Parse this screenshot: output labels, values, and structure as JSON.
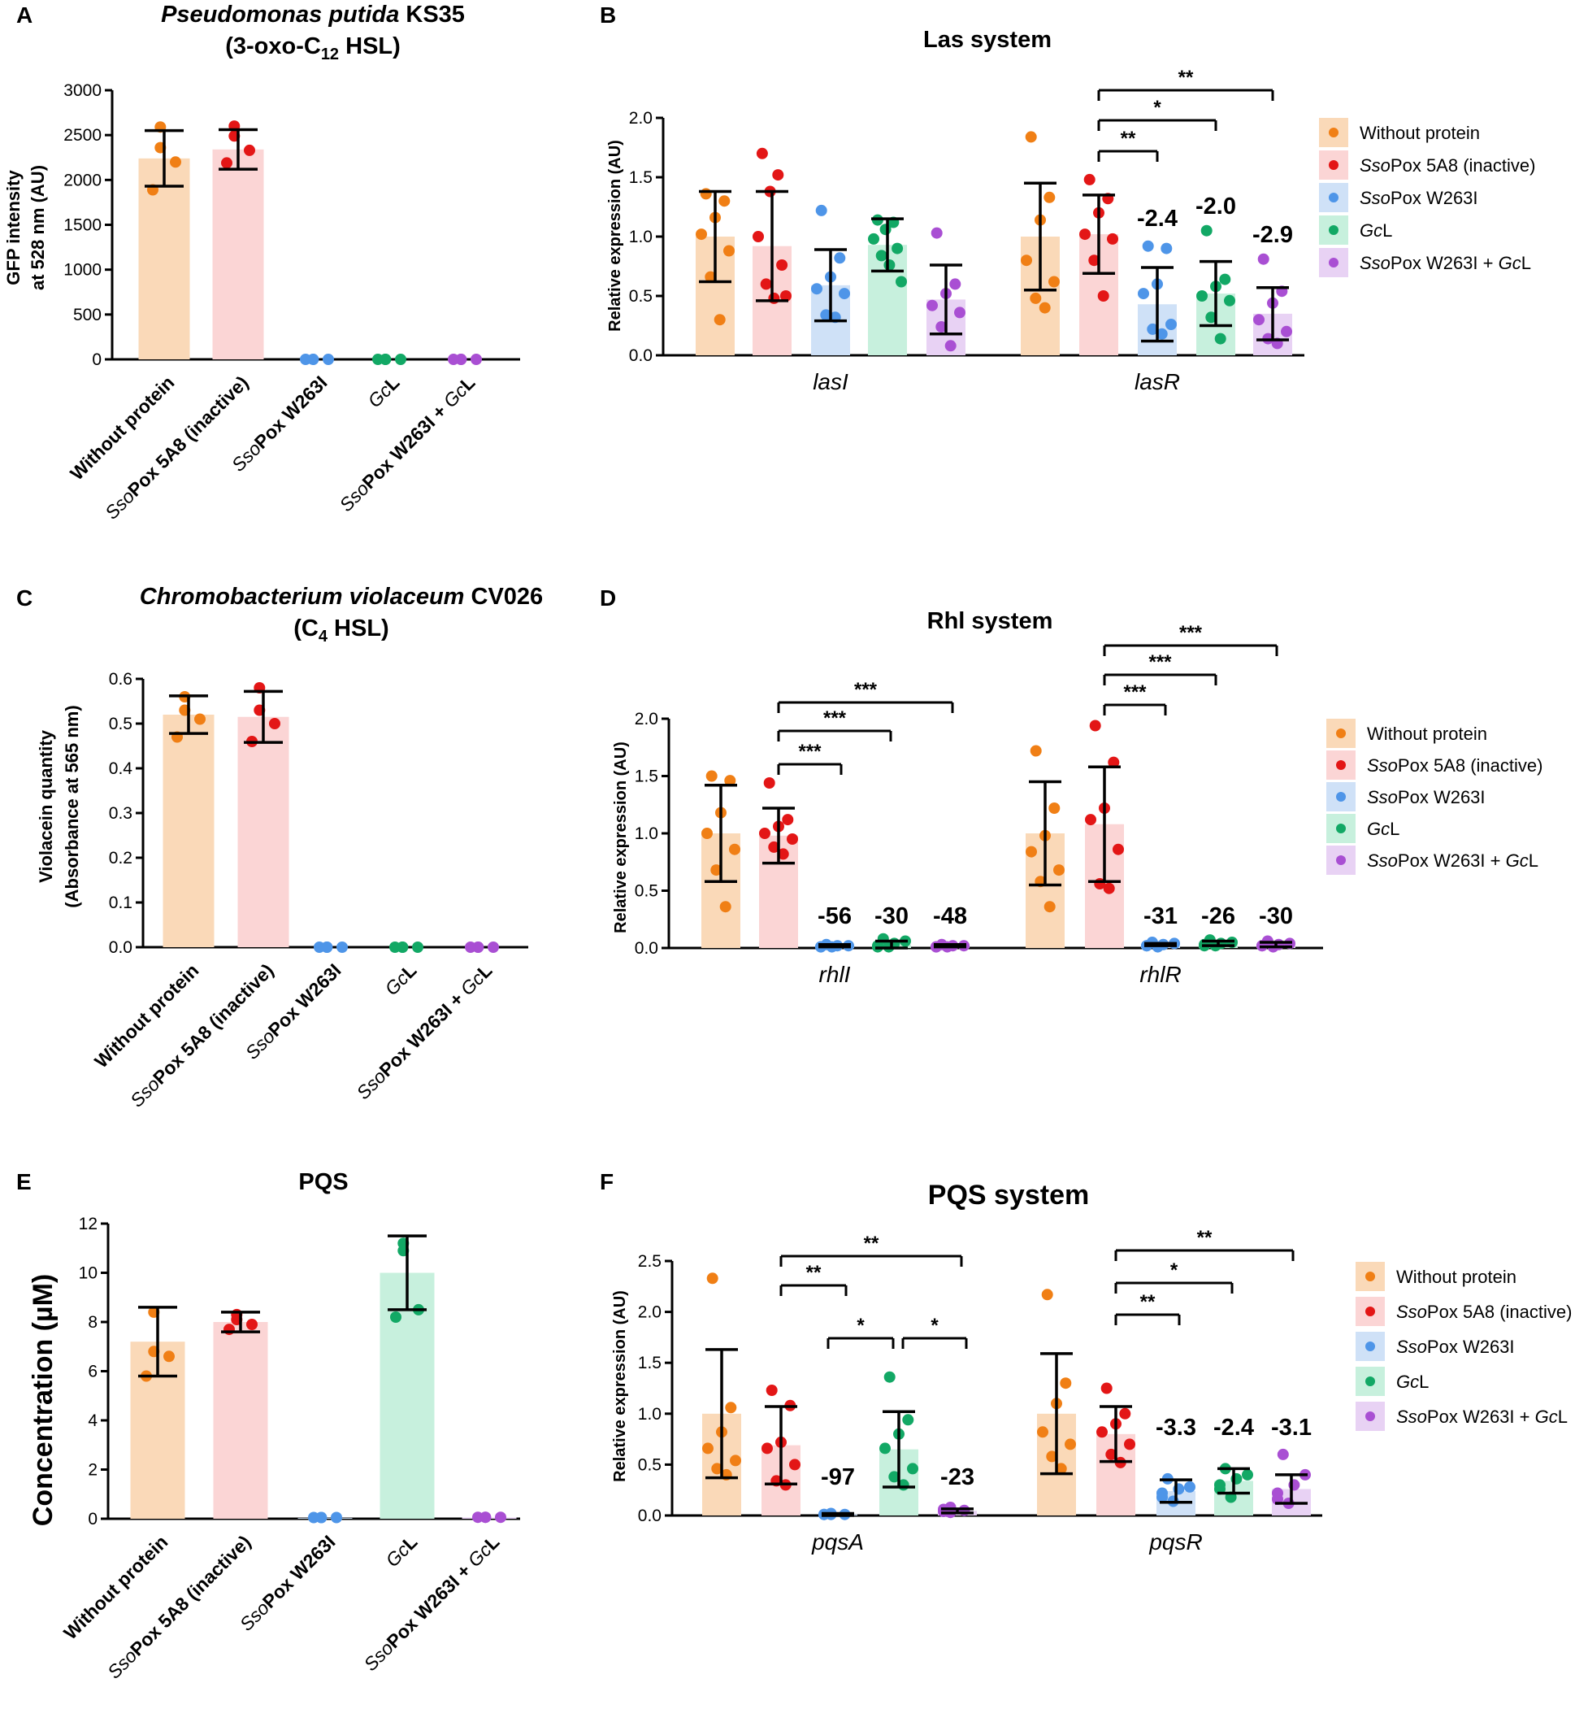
{
  "colors": {
    "orange": "#f07f15",
    "orange_bar": "#fad9b8",
    "red": "#e31616",
    "red_bar": "#fbd5d5",
    "blue": "#4e95e8",
    "blue_bar": "#cfe1f7",
    "green": "#12a865",
    "green_bar": "#c7f0dd",
    "purple": "#a94fd3",
    "purple_bar": "#e8d2f4"
  },
  "chart_data": [
    {
      "panel": "A",
      "type": "bar",
      "title_line1_italic": "Pseudomonas putida",
      "title_line1_rest": " KS35",
      "title_line2": "(3-oxo-C12 HSL)",
      "ylabel_line1": "GFP intensity",
      "ylabel_line2": "at 528 nm (AU)",
      "ylim": [
        0,
        3000
      ],
      "yticks": [
        "0",
        "500",
        "1000",
        "1500",
        "2000",
        "2500",
        "3000"
      ],
      "categories": [
        "Without protein",
        "SsoPox 5A8 (inactive)",
        "SsoPox W263I",
        "GcL",
        "SsoPox W263I + GcL"
      ],
      "values": [
        2240,
        2340,
        0,
        0,
        0
      ],
      "errors": [
        310,
        220,
        0,
        0,
        0
      ],
      "points": [
        [
          2590,
          2360,
          2200,
          1890
        ],
        [
          2600,
          2490,
          2330,
          2190
        ],
        [
          0,
          0,
          0,
          0
        ],
        [
          0,
          0,
          0,
          0
        ],
        [
          0,
          0,
          0,
          0
        ]
      ]
    },
    {
      "panel": "B",
      "type": "bar",
      "title": "Las system",
      "ylabel": "Relative expression (AU)",
      "ylim": [
        0,
        2.0
      ],
      "yticks": [
        "0.0",
        "0.5",
        "1.0",
        "1.5",
        "2.0"
      ],
      "genes": [
        "lasI",
        "lasR"
      ],
      "series": [
        "Without protein",
        "SsoPox 5A8 (inactive)",
        "SsoPox W263I",
        "GcL",
        "SsoPox W263I + GcL"
      ],
      "values": [
        [
          1.0,
          0.92,
          0.59,
          0.93,
          0.47
        ],
        [
          1.0,
          1.02,
          0.43,
          0.52,
          0.35
        ]
      ],
      "errors": [
        [
          0.38,
          0.46,
          0.3,
          0.22,
          0.29
        ],
        [
          0.45,
          0.33,
          0.31,
          0.27,
          0.22
        ]
      ],
      "points": [
        [
          [
            1.36,
            1.3,
            1.16,
            1.02,
            0.88,
            0.66,
            0.3
          ],
          [
            1.7,
            1.52,
            1.38,
            1.0,
            0.76,
            0.6,
            0.48,
            0.5
          ],
          [
            1.22,
            0.82,
            0.66,
            0.56,
            0.52,
            0.34,
            0.32
          ],
          [
            1.14,
            1.12,
            1.06,
            0.98,
            0.9,
            0.84,
            0.76,
            0.62
          ],
          [
            1.03,
            0.6,
            0.52,
            0.42,
            0.36,
            0.24,
            0.08
          ]
        ],
        [
          [
            1.84,
            1.33,
            1.14,
            0.8,
            0.62,
            0.48,
            0.4
          ],
          [
            1.48,
            1.32,
            1.2,
            1.02,
            0.98,
            0.8,
            0.5
          ],
          [
            0.92,
            0.9,
            0.6,
            0.52,
            0.26,
            0.22,
            0.18
          ],
          [
            1.05,
            0.64,
            0.58,
            0.5,
            0.46,
            0.32,
            0.14
          ],
          [
            0.81,
            0.54,
            0.44,
            0.3,
            0.2,
            0.14,
            0.1
          ]
        ]
      ],
      "fold_labels": [
        "-2.4",
        "-2.0",
        "-2.9"
      ],
      "significance": [
        {
          "from": 1,
          "to": 2,
          "label": "**"
        },
        {
          "from": 1,
          "to": 3,
          "label": "*"
        },
        {
          "from": 1,
          "to": 4,
          "label": "**"
        }
      ]
    },
    {
      "panel": "C",
      "type": "bar",
      "title_line1_italic": "Chromobacterium violaceum",
      "title_line1_rest": " CV026",
      "title_line2": "(C4 HSL)",
      "ylabel_line1": "Violacein quantity",
      "ylabel_line2": "(Absorbance at 565 nm)",
      "ylim": [
        0,
        0.6
      ],
      "yticks": [
        "0.0",
        "0.1",
        "0.2",
        "0.3",
        "0.4",
        "0.5",
        "0.6"
      ],
      "categories": [
        "Without protein",
        "SsoPox 5A8 (inactive)",
        "SsoPox W263I",
        "GcL",
        "SsoPox W263I + GcL"
      ],
      "values": [
        0.52,
        0.515,
        0,
        0,
        0
      ],
      "errors": [
        0.042,
        0.057,
        0,
        0,
        0
      ],
      "points": [
        [
          0.56,
          0.53,
          0.51,
          0.47
        ],
        [
          0.58,
          0.53,
          0.5,
          0.46
        ],
        [
          0,
          0,
          0,
          0
        ],
        [
          0,
          0,
          0,
          0
        ],
        [
          0,
          0,
          0,
          0
        ]
      ]
    },
    {
      "panel": "D",
      "type": "bar",
      "title": "Rhl system",
      "ylabel": "Relative expression (AU)",
      "ylim": [
        0,
        2.0
      ],
      "yticks": [
        "0.0",
        "0.5",
        "1.0",
        "1.5",
        "2.0"
      ],
      "genes": [
        "rhlI",
        "rhlR"
      ],
      "series": [
        "Without protein",
        "SsoPox 5A8 (inactive)",
        "SsoPox W263I",
        "GcL",
        "SsoPox W263I + GcL"
      ],
      "values": [
        [
          1.0,
          0.98,
          0.02,
          0.03,
          0.02
        ],
        [
          1.0,
          1.08,
          0.03,
          0.04,
          0.03
        ]
      ],
      "errors": [
        [
          0.42,
          0.24,
          0.01,
          0.03,
          0.01
        ],
        [
          0.45,
          0.5,
          0.01,
          0.02,
          0.02
        ]
      ],
      "points": [
        [
          [
            1.5,
            1.46,
            1.18,
            1.0,
            0.86,
            0.68,
            0.36
          ],
          [
            1.44,
            1.12,
            1.06,
            1.0,
            0.95,
            0.88,
            0.82
          ],
          [
            0.03,
            0.02,
            0.02,
            0.01,
            0.01,
            0.01
          ],
          [
            0.08,
            0.06,
            0.04,
            0.02,
            0.01,
            0.01
          ],
          [
            0.03,
            0.02,
            0.02,
            0.01,
            0.01,
            0.01
          ]
        ],
        [
          [
            1.72,
            1.22,
            0.98,
            0.84,
            0.68,
            0.58,
            0.36
          ],
          [
            1.94,
            1.62,
            1.22,
            1.12,
            0.86,
            0.56,
            0.52
          ],
          [
            0.05,
            0.04,
            0.03,
            0.02,
            0.02,
            0.01
          ],
          [
            0.07,
            0.05,
            0.04,
            0.03,
            0.02,
            0.02
          ],
          [
            0.06,
            0.04,
            0.03,
            0.02,
            0.02,
            0.01
          ]
        ]
      ],
      "fold_labels": [
        "-56",
        "-30",
        "-48",
        "-31",
        "-26",
        "-30"
      ],
      "significance": [
        {
          "from": 1,
          "to": 2,
          "label": "***"
        },
        {
          "from": 1,
          "to": 3,
          "label": "***"
        },
        {
          "from": 1,
          "to": 4,
          "label": "***"
        }
      ]
    },
    {
      "panel": "E",
      "type": "bar",
      "title": "PQS",
      "ylabel": "Concentration (µM)",
      "ylim": [
        0,
        12
      ],
      "yticks": [
        "0",
        "2",
        "4",
        "6",
        "8",
        "10",
        "12"
      ],
      "categories": [
        "Without protein",
        "SsoPox 5A8 (inactive)",
        "SsoPox W263I",
        "GcL",
        "SsoPox W263I + GcL"
      ],
      "values": [
        7.2,
        8.0,
        0.03,
        10.0,
        0.05
      ],
      "errors": [
        1.4,
        0.4,
        0,
        1.5,
        0
      ],
      "points": [
        [
          8.4,
          6.8,
          6.6,
          5.8
        ],
        [
          8.3,
          8.1,
          7.9,
          7.7
        ],
        [
          0.05,
          0.05,
          0.05,
          0.05
        ],
        [
          11.2,
          10.9,
          8.5,
          8.2
        ],
        [
          0.06,
          0.06,
          0.06,
          0.06
        ]
      ]
    },
    {
      "panel": "F",
      "type": "bar",
      "title": "PQS system",
      "ylabel": "Relative expression (AU)",
      "ylim": [
        0,
        2.5
      ],
      "yticks": [
        "0.0",
        "0.5",
        "1.0",
        "1.5",
        "2.0",
        "2.5"
      ],
      "genes": [
        "pqsA",
        "pqsR"
      ],
      "series": [
        "Without protein",
        "SsoPox 5A8 (inactive)",
        "SsoPox W263I",
        "GcL",
        "SsoPox W263I + GcL"
      ],
      "values": [
        [
          1.0,
          0.69,
          0.01,
          0.65,
          0.045
        ],
        [
          1.0,
          0.8,
          0.24,
          0.34,
          0.26
        ]
      ],
      "errors": [
        [
          0.63,
          0.38,
          0.01,
          0.37,
          0.02
        ],
        [
          0.59,
          0.27,
          0.11,
          0.12,
          0.14
        ]
      ],
      "points": [
        [
          [
            2.33,
            1.06,
            0.82,
            0.66,
            0.54,
            0.46,
            0.4
          ],
          [
            1.23,
            1.08,
            0.72,
            0.66,
            0.5,
            0.34,
            0.3
          ],
          [
            0.02,
            0.01,
            0.01,
            0.01,
            0.01
          ],
          [
            1.36,
            0.94,
            0.8,
            0.66,
            0.46,
            0.38,
            0.3
          ],
          [
            0.08,
            0.06,
            0.05,
            0.04,
            0.03
          ]
        ],
        [
          [
            2.17,
            1.3,
            1.1,
            0.82,
            0.7,
            0.58,
            0.46
          ],
          [
            1.25,
            1.0,
            0.9,
            0.82,
            0.7,
            0.6,
            0.52
          ],
          [
            0.36,
            0.28,
            0.26,
            0.22,
            0.18,
            0.14
          ],
          [
            0.46,
            0.4,
            0.36,
            0.3,
            0.26,
            0.18
          ],
          [
            0.6,
            0.4,
            0.3,
            0.22,
            0.16,
            0.12
          ]
        ]
      ],
      "fold_labels": [
        "-97",
        "-23",
        "-3.3",
        "-2.4",
        "-3.1"
      ],
      "significance": [
        {
          "from": 1,
          "to": 2,
          "label": "**"
        },
        {
          "from": 1,
          "to": 4,
          "label": "**"
        },
        {
          "from": 2,
          "to": 3,
          "label": "*"
        },
        {
          "from": 3,
          "to": 4,
          "label": "*"
        }
      ],
      "significance_second": [
        {
          "from": 1,
          "to": 2,
          "label": "**"
        },
        {
          "from": 1,
          "to": 3,
          "label": "*"
        },
        {
          "from": 1,
          "to": 4,
          "label": "**"
        }
      ]
    }
  ],
  "legend": {
    "items": [
      {
        "italic": "",
        "text": "Without protein"
      },
      {
        "italic": "Sso",
        "text": "Pox 5A8 (inactive)"
      },
      {
        "italic": "Sso",
        "text": "Pox W263I"
      },
      {
        "italic": "Gc",
        "text": "L"
      },
      {
        "italic": "Sso",
        "text": "Pox W263I + ",
        "italic2": "Gc",
        "text2": "L"
      }
    ]
  },
  "category_labels": [
    {
      "italic": "",
      "bold": "Without protein"
    },
    {
      "italic": "Sso",
      "bold": "Pox 5A8 (inactive)"
    },
    {
      "italic": "Sso",
      "bold": "Pox W263I"
    },
    {
      "italic": "Gc",
      "bold": "L"
    },
    {
      "italic": "Sso",
      "bold": "Pox W263I + ",
      "italic2": "Gc",
      "bold2": "L"
    }
  ],
  "panel_letters": [
    "A",
    "B",
    "C",
    "D",
    "E",
    "F"
  ]
}
